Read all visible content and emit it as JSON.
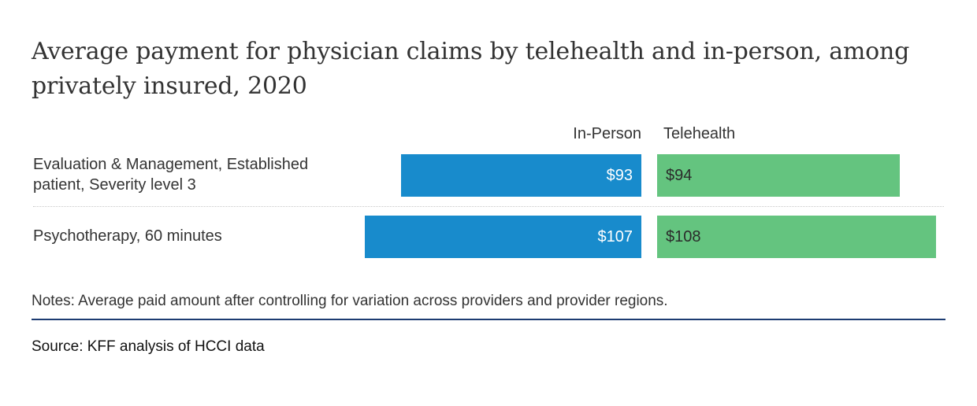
{
  "chart_data": {
    "type": "bar",
    "orientation": "horizontal",
    "title": "Average payment for physician claims by telehealth and in-person, among privately insured, 2020",
    "categories": [
      "Evaluation & Management, Established patient, Severity level 3",
      "Psychotherapy, 60 minutes"
    ],
    "series": [
      {
        "name": "In-Person",
        "values": [
          93,
          107
        ],
        "labels": [
          "$93",
          "$107"
        ],
        "color": "#188bcc"
      },
      {
        "name": "Telehealth",
        "values": [
          94,
          108
        ],
        "labels": [
          "$94",
          "$108"
        ],
        "color": "#64c47f"
      }
    ],
    "xlabel": "",
    "ylabel": "",
    "units": "USD",
    "grid": false,
    "notes": "Notes: Average paid amount after controlling for variation across providers and provider regions.",
    "source": "Source: KFF analysis of HCCI data"
  },
  "colors": {
    "in_person": "#188bcc",
    "telehealth": "#64c47f",
    "rule": "#1d3c72",
    "text": "#333333"
  }
}
